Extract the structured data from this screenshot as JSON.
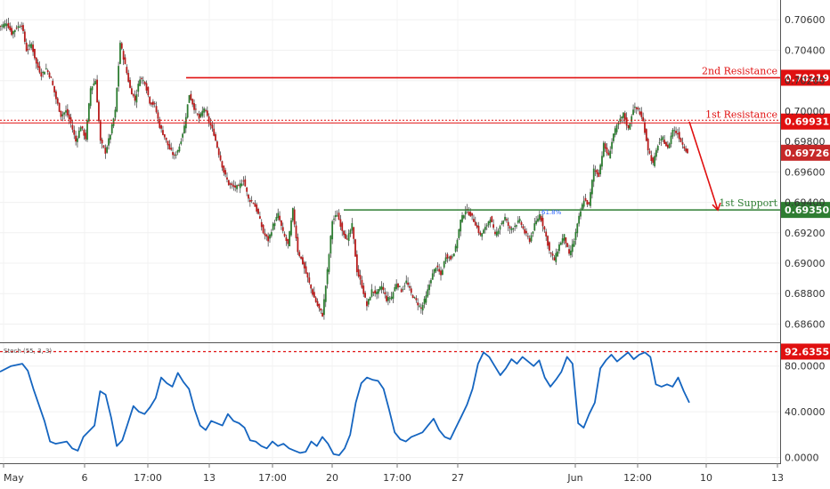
{
  "chart_data": [
    {
      "type": "candlestick",
      "title": "",
      "price_axis": {
        "ticks": [
          "0.70600",
          "0.70400",
          "0.70200",
          "0.70000",
          "0.69800",
          "0.69600",
          "0.69400",
          "0.69200",
          "0.69000",
          "0.68800",
          "0.68600"
        ],
        "range": [
          0.6848,
          0.7073
        ]
      },
      "time_axis": {
        "ticks": [
          "May",
          "6",
          "17:00",
          "13",
          "17:00",
          "20",
          "17:00",
          "27",
          "Jun",
          "12:00",
          "10",
          "13"
        ]
      },
      "grid": true,
      "levels": [
        {
          "name": "2nd Resistance",
          "value": 0.70219,
          "label": "0.70219",
          "color": "#e01010"
        },
        {
          "name": "1st Resistance",
          "value": 0.69931,
          "label": "0.69931",
          "color": "#e01010"
        },
        {
          "name": "1st Support",
          "value": 0.6935,
          "label": "0.69350",
          "color": "#2e7d32"
        }
      ],
      "last_price": {
        "value": 0.69726,
        "label": "0.69726",
        "color": "#c62828"
      },
      "fib_label": "61.8%",
      "projection": {
        "from": 0.6993,
        "to": 0.6935,
        "color": "#e01010"
      },
      "close_path": [
        [
          0,
          0.7056
        ],
        [
          1,
          0.7058
        ],
        [
          2,
          0.7051
        ],
        [
          3,
          0.7055
        ],
        [
          4,
          0.7057
        ],
        [
          5,
          0.704
        ],
        [
          6,
          0.7044
        ],
        [
          7,
          0.7031
        ],
        [
          8,
          0.7024
        ],
        [
          9,
          0.7028
        ],
        [
          10,
          0.7021
        ],
        [
          11,
          0.7008
        ],
        [
          12,
          0.6997
        ],
        [
          13,
          0.7
        ],
        [
          14,
          0.6992
        ],
        [
          15,
          0.698
        ],
        [
          16,
          0.699
        ],
        [
          17,
          0.6982
        ],
        [
          18,
          0.7015
        ],
        [
          19,
          0.702
        ],
        [
          20,
          0.698
        ],
        [
          21,
          0.6973
        ],
        [
          22,
          0.6985
        ],
        [
          23,
          0.7
        ],
        [
          24,
          0.7045
        ],
        [
          25,
          0.703
        ],
        [
          26,
          0.7015
        ],
        [
          27,
          0.7007
        ],
        [
          28,
          0.7022
        ],
        [
          29,
          0.7019
        ],
        [
          30,
          0.7006
        ],
        [
          31,
          0.7004
        ],
        [
          32,
          0.699
        ],
        [
          33,
          0.6983
        ],
        [
          34,
          0.6975
        ],
        [
          35,
          0.697
        ],
        [
          36,
          0.6977
        ],
        [
          37,
          0.699
        ],
        [
          38,
          0.7011
        ],
        [
          39,
          0.7002
        ],
        [
          40,
          0.6995
        ],
        [
          41,
          0.7002
        ],
        [
          42,
          0.6993
        ],
        [
          43,
          0.6985
        ],
        [
          44,
          0.6972
        ],
        [
          45,
          0.696
        ],
        [
          46,
          0.6952
        ],
        [
          47,
          0.695
        ],
        [
          48,
          0.695
        ],
        [
          49,
          0.6955
        ],
        [
          50,
          0.6942
        ],
        [
          51,
          0.694
        ],
        [
          52,
          0.6932
        ],
        [
          53,
          0.692
        ],
        [
          54,
          0.6915
        ],
        [
          55,
          0.6925
        ],
        [
          56,
          0.6932
        ],
        [
          57,
          0.692
        ],
        [
          58,
          0.6912
        ],
        [
          59,
          0.6935
        ],
        [
          60,
          0.6908
        ],
        [
          61,
          0.69
        ],
        [
          62,
          0.689
        ],
        [
          63,
          0.688
        ],
        [
          64,
          0.6872
        ],
        [
          65,
          0.6866
        ],
        [
          66,
          0.6895
        ],
        [
          67,
          0.6928
        ],
        [
          68,
          0.6932
        ],
        [
          69,
          0.6922
        ],
        [
          70,
          0.6915
        ],
        [
          71,
          0.6925
        ],
        [
          72,
          0.6895
        ],
        [
          73,
          0.6885
        ],
        [
          74,
          0.6872
        ],
        [
          75,
          0.6882
        ],
        [
          76,
          0.688
        ],
        [
          77,
          0.6885
        ],
        [
          78,
          0.6876
        ],
        [
          79,
          0.6878
        ],
        [
          80,
          0.6887
        ],
        [
          81,
          0.6882
        ],
        [
          82,
          0.6888
        ],
        [
          83,
          0.688
        ],
        [
          84,
          0.6875
        ],
        [
          85,
          0.687
        ],
        [
          86,
          0.6878
        ],
        [
          87,
          0.689
        ],
        [
          88,
          0.6898
        ],
        [
          89,
          0.6892
        ],
        [
          90,
          0.6905
        ],
        [
          91,
          0.6903
        ],
        [
          92,
          0.691
        ],
        [
          93,
          0.6928
        ],
        [
          94,
          0.6935
        ],
        [
          95,
          0.6932
        ],
        [
          96,
          0.6926
        ],
        [
          97,
          0.6918
        ],
        [
          98,
          0.6923
        ],
        [
          99,
          0.693
        ],
        [
          100,
          0.6918
        ],
        [
          101,
          0.6925
        ],
        [
          102,
          0.693
        ],
        [
          103,
          0.6922
        ],
        [
          104,
          0.6925
        ],
        [
          105,
          0.6928
        ],
        [
          106,
          0.692
        ],
        [
          107,
          0.6915
        ],
        [
          108,
          0.6925
        ],
        [
          109,
          0.6932
        ],
        [
          110,
          0.6922
        ],
        [
          111,
          0.6908
        ],
        [
          112,
          0.6902
        ],
        [
          113,
          0.6912
        ],
        [
          114,
          0.6918
        ],
        [
          115,
          0.6905
        ],
        [
          116,
          0.6915
        ],
        [
          117,
          0.693
        ],
        [
          118,
          0.6942
        ],
        [
          119,
          0.6938
        ],
        [
          120,
          0.6962
        ],
        [
          121,
          0.6958
        ],
        [
          122,
          0.6978
        ],
        [
          123,
          0.697
        ],
        [
          124,
          0.6985
        ],
        [
          125,
          0.6992
        ],
        [
          126,
          0.6998
        ],
        [
          127,
          0.6988
        ],
        [
          128,
          0.7002
        ],
        [
          129,
          0.7001
        ],
        [
          130,
          0.6993
        ],
        [
          131,
          0.6975
        ],
        [
          132,
          0.6965
        ],
        [
          133,
          0.6978
        ],
        [
          134,
          0.6982
        ],
        [
          135,
          0.6975
        ],
        [
          136,
          0.6988
        ],
        [
          137,
          0.6985
        ],
        [
          138,
          0.6978
        ],
        [
          139,
          0.6973
        ]
      ],
      "volatility": 0.00045
    },
    {
      "type": "line",
      "title": "",
      "indicator_label": "Stoch (55, 3, 3)",
      "value_axis": {
        "ticks": [
          "80.0000",
          "40.0000",
          "0.0000"
        ],
        "tick_values": [
          80,
          40,
          0
        ],
        "range": [
          -5,
          100
        ]
      },
      "reference_line": {
        "value": 92.6355,
        "label": "92.6355",
        "color": "#e01010"
      },
      "series": [
        {
          "color": "#1565c0",
          "points": [
            [
              0,
              75
            ],
            [
              2,
              80
            ],
            [
              4,
              82
            ],
            [
              5,
              76
            ],
            [
              6,
              60
            ],
            [
              8,
              32
            ],
            [
              9,
              14
            ],
            [
              10,
              12
            ],
            [
              12,
              14
            ],
            [
              13,
              8
            ],
            [
              14,
              6
            ],
            [
              15,
              18
            ],
            [
              17,
              28
            ],
            [
              18,
              58
            ],
            [
              19,
              55
            ],
            [
              20,
              35
            ],
            [
              21,
              10
            ],
            [
              22,
              15
            ],
            [
              23,
              30
            ],
            [
              24,
              45
            ],
            [
              25,
              40
            ],
            [
              26,
              38
            ],
            [
              27,
              44
            ],
            [
              28,
              52
            ],
            [
              29,
              70
            ],
            [
              30,
              65
            ],
            [
              31,
              62
            ],
            [
              32,
              74
            ],
            [
              33,
              66
            ],
            [
              34,
              60
            ],
            [
              35,
              42
            ],
            [
              36,
              28
            ],
            [
              37,
              24
            ],
            [
              38,
              32
            ],
            [
              40,
              28
            ],
            [
              41,
              38
            ],
            [
              42,
              32
            ],
            [
              43,
              30
            ],
            [
              44,
              26
            ],
            [
              45,
              15
            ],
            [
              46,
              14
            ],
            [
              47,
              10
            ],
            [
              48,
              8
            ],
            [
              49,
              14
            ],
            [
              50,
              10
            ],
            [
              51,
              12
            ],
            [
              52,
              8
            ],
            [
              53,
              6
            ],
            [
              54,
              4
            ],
            [
              55,
              5
            ],
            [
              56,
              14
            ],
            [
              57,
              10
            ],
            [
              58,
              18
            ],
            [
              59,
              12
            ],
            [
              60,
              3
            ],
            [
              61,
              2
            ],
            [
              62,
              8
            ],
            [
              63,
              20
            ],
            [
              64,
              48
            ],
            [
              65,
              65
            ],
            [
              66,
              70
            ],
            [
              67,
              68
            ],
            [
              68,
              67
            ],
            [
              69,
              60
            ],
            [
              70,
              42
            ],
            [
              71,
              22
            ],
            [
              72,
              16
            ],
            [
              73,
              14
            ],
            [
              74,
              18
            ],
            [
              75,
              20
            ],
            [
              76,
              22
            ],
            [
              77,
              28
            ],
            [
              78,
              34
            ],
            [
              79,
              24
            ],
            [
              80,
              18
            ],
            [
              81,
              16
            ],
            [
              82,
              26
            ],
            [
              83,
              36
            ],
            [
              84,
              46
            ],
            [
              85,
              60
            ],
            [
              86,
              82
            ],
            [
              87,
              92
            ],
            [
              88,
              88
            ],
            [
              89,
              80
            ],
            [
              90,
              72
            ],
            [
              91,
              78
            ],
            [
              92,
              86
            ],
            [
              93,
              82
            ],
            [
              94,
              88
            ],
            [
              95,
              84
            ],
            [
              96,
              80
            ],
            [
              97,
              85
            ],
            [
              98,
              70
            ],
            [
              99,
              62
            ],
            [
              100,
              68
            ],
            [
              101,
              75
            ],
            [
              102,
              88
            ],
            [
              103,
              82
            ],
            [
              104,
              30
            ],
            [
              105,
              26
            ],
            [
              106,
              38
            ],
            [
              107,
              48
            ],
            [
              108,
              78
            ],
            [
              109,
              85
            ],
            [
              110,
              90
            ],
            [
              111,
              84
            ],
            [
              112,
              88
            ],
            [
              113,
              92
            ],
            [
              114,
              86
            ],
            [
              115,
              90
            ],
            [
              116,
              92
            ],
            [
              117,
              88
            ],
            [
              118,
              64
            ],
            [
              119,
              62
            ],
            [
              120,
              64
            ],
            [
              121,
              62
            ],
            [
              122,
              70
            ],
            [
              123,
              58
            ],
            [
              124,
              48
            ]
          ]
        }
      ]
    }
  ]
}
